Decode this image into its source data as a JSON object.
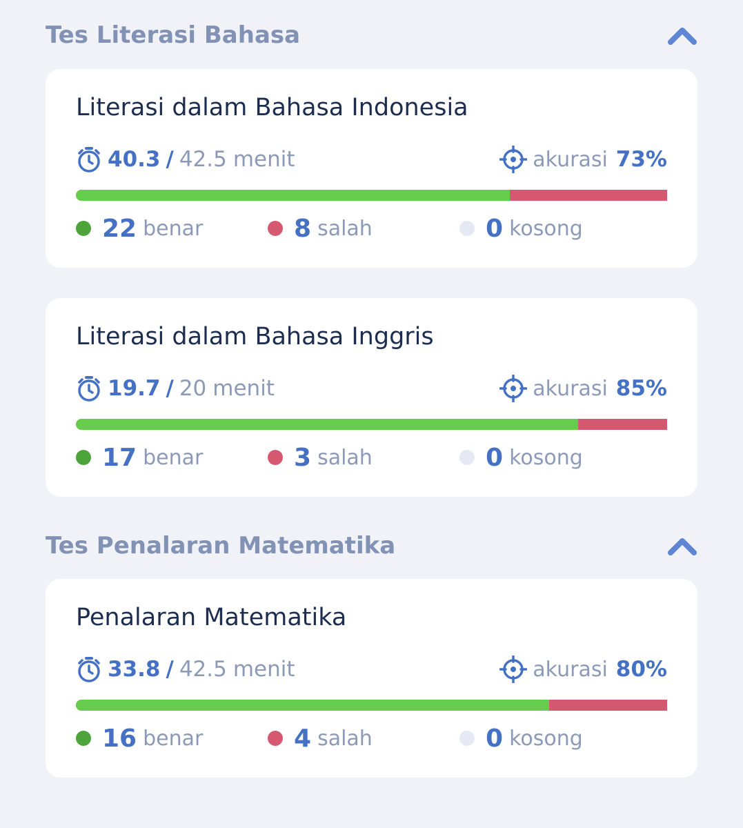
{
  "colors": {
    "background": "#f0f2f8",
    "card": "#ffffff",
    "accent": "#4571c4",
    "correct": "#4da43a",
    "wrong": "#d65870",
    "empty": "#e4e9f4",
    "bar_correct": "#65cc4c",
    "bar_wrong": "#d65870"
  },
  "labels": {
    "time_separator": "/",
    "time_unit": "menit",
    "accuracy": "akurasi",
    "correct": "benar",
    "wrong": "salah",
    "empty": "kosong"
  },
  "icons": {
    "collapse": "chevron-up-icon",
    "timer": "stopwatch-icon",
    "accuracy": "target-icon"
  },
  "sections": [
    {
      "title": "Tes Literasi Bahasa",
      "cards": [
        {
          "title": "Literasi dalam Bahasa Indonesia",
          "time_used": "40.3",
          "time_total": "42.5",
          "accuracy": "73%",
          "correct": "22",
          "wrong": "8",
          "empty": "0",
          "correct_fraction": 0.734
        },
        {
          "title": "Literasi dalam Bahasa Inggris",
          "time_used": "19.7",
          "time_total": "20",
          "accuracy": "85%",
          "correct": "17",
          "wrong": "3",
          "empty": "0",
          "correct_fraction": 0.85
        }
      ]
    },
    {
      "title": "Tes Penalaran Matematika",
      "cards": [
        {
          "title": "Penalaran Matematika",
          "time_used": "33.8",
          "time_total": "42.5",
          "accuracy": "80%",
          "correct": "16",
          "wrong": "4",
          "empty": "0",
          "correct_fraction": 0.8
        }
      ]
    }
  ]
}
